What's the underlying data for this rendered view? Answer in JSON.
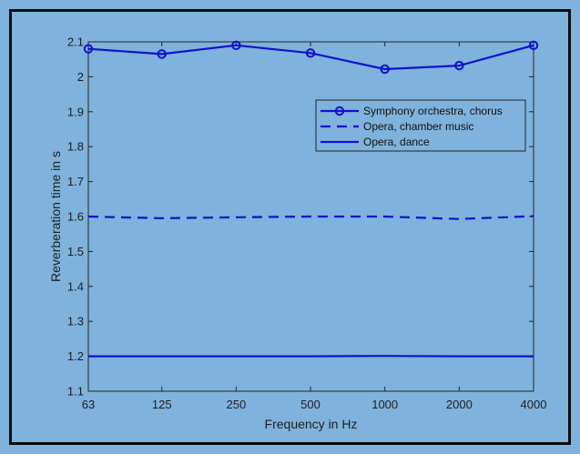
{
  "chart_data": {
    "type": "line",
    "xlabel": "Frequency in Hz",
    "ylabel": "Reverberation time in s",
    "x_scale": "log",
    "categories": [
      "63",
      "125",
      "250",
      "500",
      "1000",
      "2000",
      "4000"
    ],
    "x": [
      63,
      125,
      250,
      500,
      1000,
      2000,
      4000
    ],
    "ylim": [
      1.1,
      2.1
    ],
    "yticks": [
      "1.1",
      "1.2",
      "1.3",
      "1.4",
      "1.5",
      "1.6",
      "1.7",
      "1.8",
      "1.9",
      "2",
      "2.1"
    ],
    "legend_position": "top-right",
    "series": [
      {
        "name": "Symphony orchestra, chorus",
        "style": "solid-circles",
        "values": [
          2.08,
          2.065,
          2.09,
          2.068,
          2.022,
          2.032,
          2.09
        ]
      },
      {
        "name": "Opera, chamber music",
        "style": "dashed",
        "values": [
          1.6,
          1.595,
          1.598,
          1.6,
          1.6,
          1.593,
          1.601
        ]
      },
      {
        "name": "Opera, dance",
        "style": "solid",
        "values": [
          1.2,
          1.2,
          1.2,
          1.2,
          1.201,
          1.2,
          1.2
        ]
      }
    ],
    "color": "#1111cc"
  }
}
